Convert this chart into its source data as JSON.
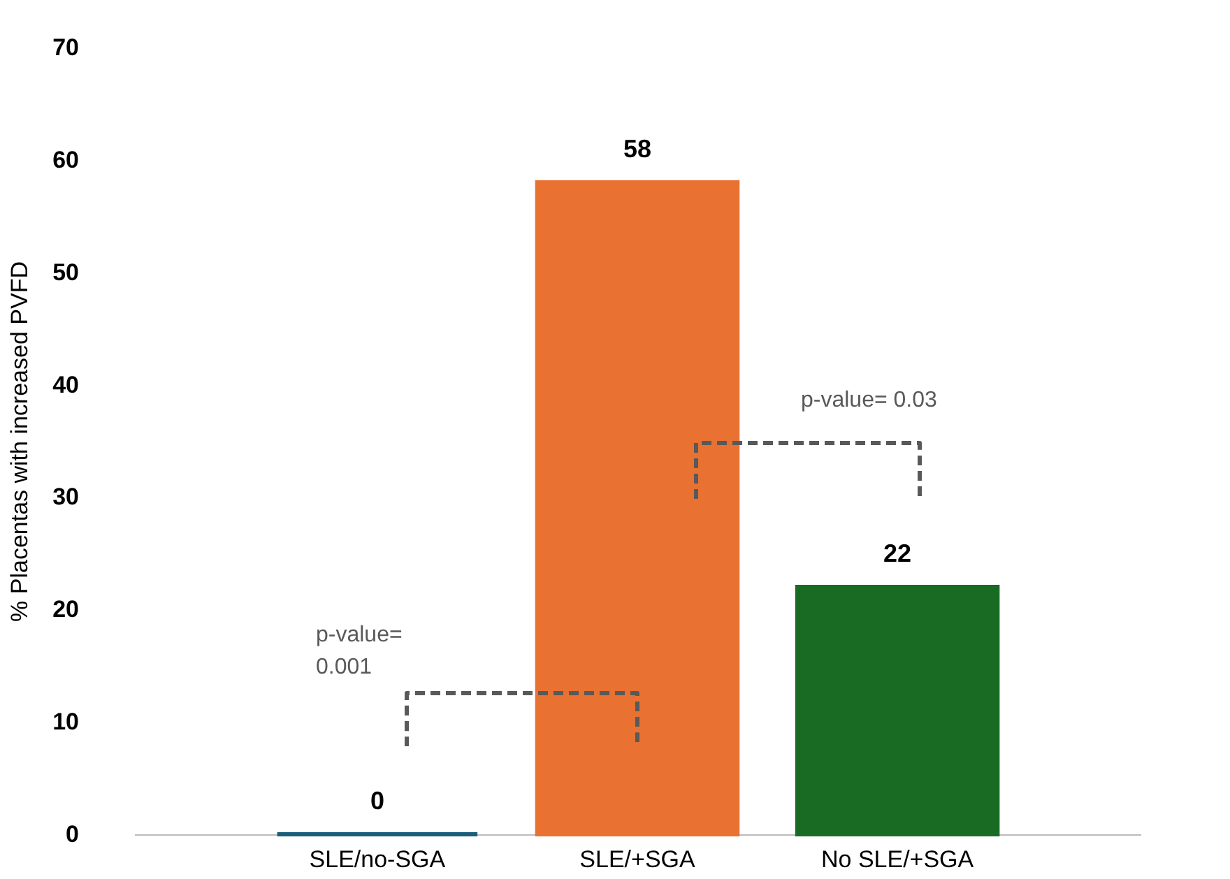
{
  "chart_data": {
    "type": "bar",
    "ylabel": "% Placentas with increased PVFD",
    "categories": [
      "SLE/no-SGA",
      "SLE/+SGA",
      "No SLE/+SGA"
    ],
    "values": [
      0,
      58,
      22
    ],
    "colors": [
      "#1b5e7b",
      "#e97132",
      "#196b24"
    ],
    "ylim": [
      0,
      70
    ],
    "yticks": [
      0,
      10,
      20,
      30,
      40,
      50,
      60,
      70
    ],
    "grid": false,
    "data_labels": true,
    "annotations": [
      "p-value= 0.001",
      "p-value= 0.03"
    ]
  }
}
